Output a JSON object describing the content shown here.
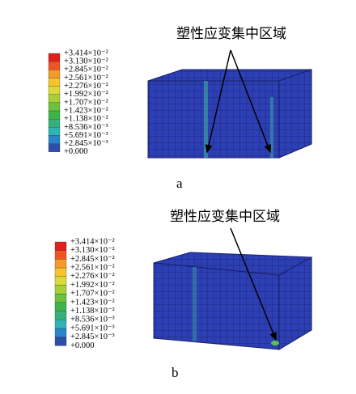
{
  "panels": [
    {
      "caption": "a",
      "annotation": "塑性应变集中区域",
      "legend": {
        "labels": [
          "+3.414×10⁻²",
          "+3.130×10⁻²",
          "+2.845×10⁻²",
          "+2.561×10⁻²",
          "+2.276×10⁻²",
          "+1.992×10⁻²",
          "+1.707×10⁻²",
          "+1.423×10⁻²",
          "+1.138×10⁻²",
          "+8.536×10⁻³",
          "+5.691×10⁻³",
          "+2.845×10⁻³",
          "+0.000"
        ],
        "colors": [
          "#e0201b",
          "#ee5522",
          "#f39a2a",
          "#f5c52e",
          "#d9d93a",
          "#a6cf3a",
          "#6cc13e",
          "#3cb44a",
          "#35b07a",
          "#2fb3b3",
          "#2a84c9",
          "#2c4ea8"
        ]
      }
    },
    {
      "caption": "b",
      "annotation": "塑性应变集中区域",
      "legend": {
        "labels": [
          "+3.414×10⁻²",
          "+3.130×10⁻²",
          "+2.845×10⁻²",
          "+2.561×10⁻²",
          "+2.276×10⁻²",
          "+1.992×10⁻²",
          "+1.707×10⁻²",
          "+1.423×10⁻²",
          "+1.138×10⁻²",
          "+8.536×10⁻³",
          "+5.691×10⁻³",
          "+2.845×10⁻³",
          "+0.000"
        ],
        "colors": [
          "#e0201b",
          "#ee5522",
          "#f39a2a",
          "#f5c52e",
          "#d9d93a",
          "#a6cf3a",
          "#6cc13e",
          "#3cb44a",
          "#35b07a",
          "#2fb3b3",
          "#2a84c9",
          "#2c4ea8"
        ]
      }
    }
  ]
}
